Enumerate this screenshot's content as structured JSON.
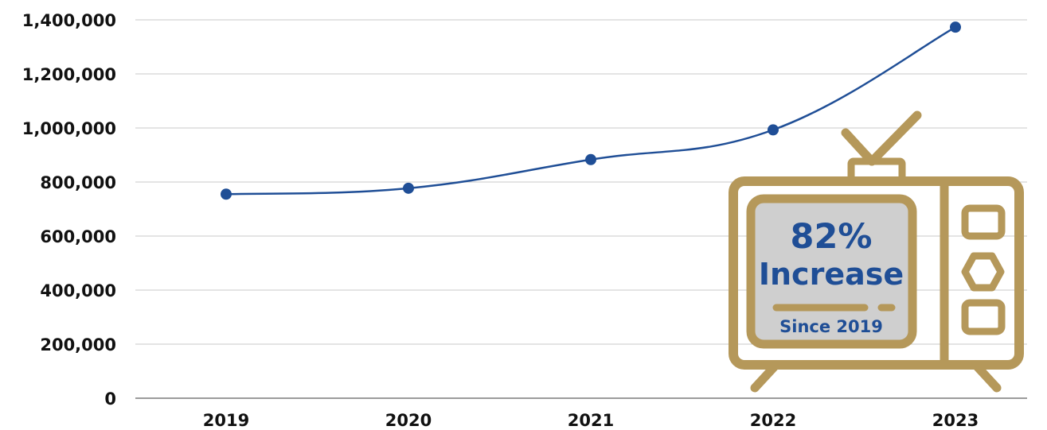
{
  "chart_data": {
    "type": "line",
    "title": "",
    "xlabel": "",
    "ylabel": "",
    "categories": [
      "2019",
      "2020",
      "2021",
      "2022",
      "2023"
    ],
    "series": [
      {
        "values": [
          755000,
          777000,
          883000,
          993000,
          1373000
        ]
      }
    ],
    "ylim": [
      0,
      1400000
    ],
    "yticks": [
      0,
      200000,
      400000,
      600000,
      800000,
      1000000,
      1200000,
      1400000
    ],
    "ytick_labels": [
      "0",
      "200,000",
      "400,000",
      "600,000",
      "800,000",
      "1,000,000",
      "1,200,000",
      "1,400,000"
    ],
    "grid": true,
    "legend": "none",
    "colors": {
      "line": "#1f4e96",
      "marker": "#1f4e96",
      "grid": "#c8c8c8",
      "tv_frame": "#b5985a",
      "tv_screen": "#cfcfcf",
      "callout_text": "#1f4e96"
    },
    "annotation": {
      "icon": "tv-icon",
      "headline": "82%",
      "subheadline": "Increase",
      "caption": "Since 2019"
    }
  }
}
